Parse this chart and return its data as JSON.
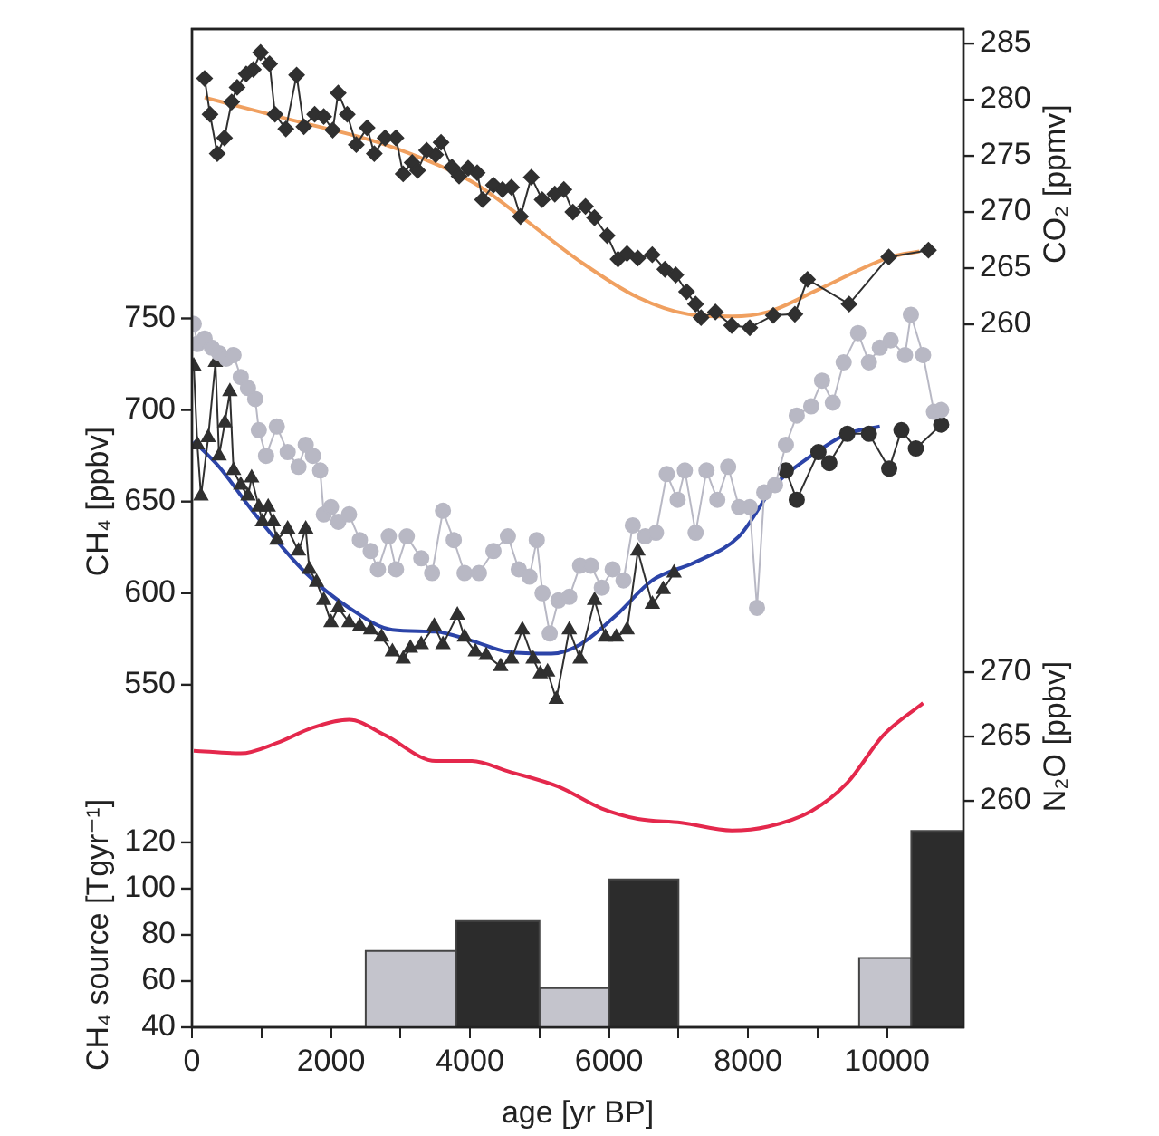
{
  "chart_data": [
    {
      "type": "line",
      "tick_labels": "y",
      "xlim": [
        0,
        11100
      ],
      "ylabel": "CH₄ [ppbv]",
      "ylim": [
        363,
        908
      ],
      "yticks": [
        550,
        600,
        650,
        700,
        750
      ],
      "y2label": "CO₂ [ppmv]",
      "y2lim": [
        197.4,
        286.3
      ],
      "y2ticks": [
        260,
        265,
        270,
        275,
        280,
        285
      ],
      "y3label": "N₂O [ppbv]",
      "y3lim": [
        242.4,
        320
      ],
      "y3ticks": [
        260,
        265,
        270
      ],
      "series": [
        {
          "axis": "y2",
          "color": "#303030",
          "marker": "diamond",
          "x": [
            182,
            260,
            364,
            468,
            571,
            650,
            780,
            883,
            987,
            1117,
            1195,
            1351,
            1506,
            1610,
            1766,
            1896,
            2026,
            2104,
            2234,
            2364,
            2520,
            2623,
            2779,
            2935,
            3039,
            3169,
            3247,
            3377,
            3506,
            3584,
            3740,
            3844,
            3974,
            4104,
            4182,
            4338,
            4468,
            4597,
            4727,
            4883,
            5039,
            5221,
            5351,
            5481,
            5662,
            5792,
            5974,
            6130,
            6260,
            6416,
            6623,
            6805,
            6961,
            7117,
            7247,
            7325,
            7532,
            7766,
            8026,
            8364,
            8675,
            8857,
            9455,
            10026,
            10597
          ],
          "values": [
            281.9,
            278.7,
            275.2,
            276.6,
            279.8,
            281.1,
            282.3,
            282.7,
            284.2,
            283.2,
            278.7,
            277.4,
            282.2,
            277.6,
            278.7,
            278.5,
            277.3,
            280.6,
            278.7,
            276,
            277.5,
            275.2,
            276.6,
            276.6,
            273.4,
            274.4,
            273.7,
            275.5,
            275.1,
            276.2,
            274,
            273.2,
            273.9,
            273.5,
            271.1,
            272.4,
            272,
            272.2,
            269.6,
            273.1,
            271.1,
            271.6,
            272,
            270,
            270.5,
            269.5,
            267.9,
            265.8,
            266.3,
            265.9,
            266.2,
            264.9,
            264.4,
            262.9,
            261.8,
            260.6,
            261.1,
            259.9,
            259.7,
            260.8,
            260.9,
            264,
            261.8,
            266,
            266.6
          ]
        },
        {
          "axis": "y2",
          "color": "#f0a060",
          "x": [
            182,
            1429,
            2779,
            4026,
            4753,
            5584,
            6416,
            7143,
            7766,
            8286,
            9013,
            10052,
            10468
          ],
          "values": [
            280.2,
            278.2,
            276,
            272.7,
            269.5,
            265.6,
            262.4,
            260.9,
            260.7,
            261.1,
            263.1,
            266,
            266.5
          ]
        },
        {
          "color": "#b8b8c4",
          "marker": "circle",
          "x": [
            26,
            78,
            182,
            286,
            390,
            494,
            598,
            702,
            806,
            910,
            962,
            1066,
            1221,
            1377,
            1533,
            1637,
            1741,
            1845,
            1897,
            2001,
            2105,
            2260,
            2416,
            2572,
            2676,
            2832,
            2936,
            3091,
            3299,
            3455,
            3611,
            3767,
            3922,
            4130,
            4338,
            4546,
            4702,
            4857,
            4961,
            5044,
            5148,
            5273,
            5429,
            5585,
            5741,
            5897,
            6053,
            6209,
            6343,
            6520,
            6676,
            6832,
            6988,
            7092,
            7247,
            7403,
            7559,
            7715,
            7871,
            8026,
            8130,
            8234,
            8390,
            8546,
            8702,
            8910,
            9066,
            9221,
            9377,
            9585,
            9741,
            9897,
            10053,
            10260,
            10344,
            10520,
            10676,
            10780
          ],
          "values": [
            747,
            736,
            739,
            734,
            731,
            728,
            730,
            718,
            712,
            706,
            689,
            675,
            691,
            677,
            669,
            681,
            675,
            667,
            643,
            647,
            639,
            643,
            629,
            623,
            613,
            631,
            613,
            631,
            619,
            611,
            645,
            629,
            611,
            611,
            623,
            631,
            613,
            609,
            629,
            600,
            578,
            596,
            598,
            615,
            615,
            603,
            613,
            607,
            637,
            631,
            633,
            665,
            651,
            667,
            633,
            667,
            651,
            669,
            647,
            647,
            592,
            655,
            659,
            681,
            697,
            702,
            716,
            704,
            726,
            742,
            726,
            734,
            738,
            730,
            752,
            730,
            699,
            700
          ]
        },
        {
          "color": "#303030",
          "marker": "triangle",
          "x": [
            26,
            78,
            130,
            234,
            338,
            390,
            473,
            546,
            598,
            702,
            806,
            858,
            962,
            1014,
            1097,
            1169,
            1221,
            1377,
            1533,
            1637,
            1689,
            1793,
            1897,
            2001,
            2105,
            2260,
            2416,
            2572,
            2728,
            2884,
            3039,
            3143,
            3299,
            3486,
            3611,
            3819,
            3922,
            4078,
            4234,
            4442,
            4598,
            4754,
            4909,
            5013,
            5117,
            5242,
            5429,
            5585,
            5793,
            5949,
            6105,
            6260,
            6416,
            6624,
            6780,
            6936
          ],
          "values": [
            724,
            681,
            653,
            685,
            726,
            675,
            693,
            710,
            667,
            659,
            653,
            663,
            647,
            639,
            647,
            639,
            629,
            635,
            623,
            635,
            613,
            606,
            596,
            584,
            592,
            584,
            582,
            580,
            576,
            568,
            564,
            570,
            572,
            582,
            572,
            588,
            576,
            568,
            566,
            560,
            564,
            580,
            564,
            556,
            557,
            542,
            580,
            564,
            596,
            576,
            576,
            580,
            623,
            594,
            602,
            611
          ]
        },
        {
          "color": "#303030",
          "marker": "circle",
          "x": [
            8546,
            8702,
            9014,
            9170,
            9429,
            9741,
            10032,
            10208,
            10416,
            10780
          ],
          "values": [
            667,
            651,
            677,
            671,
            687,
            687,
            668,
            689,
            679,
            692
          ]
        },
        {
          "color": "#2c44a8",
          "x": [
            26,
            390,
            910,
            1637,
            2260,
            2884,
            3507,
            4027,
            4546,
            5170,
            5585,
            6105,
            6624,
            7247,
            7871,
            8390,
            8910,
            9429,
            9897
          ],
          "values": [
            683,
            669,
            643,
            611,
            592,
            580,
            579,
            574,
            568,
            567,
            572,
            588,
            607,
            617,
            631,
            659,
            675,
            687,
            691
          ]
        },
        {
          "axis": "y3",
          "color": "#e4284c",
          "x": [
            26,
            702,
            1221,
            1741,
            2260,
            2780,
            3507,
            4027,
            4546,
            5273,
            5897,
            6416,
            7040,
            7767,
            8286,
            8910,
            9429,
            9948,
            10520
          ],
          "values": [
            263.9,
            263.7,
            264.5,
            265.7,
            266.3,
            265.1,
            263.1,
            263.1,
            262.3,
            261.1,
            259.4,
            258.6,
            258.3,
            257.7,
            258,
            259.2,
            261.4,
            265.1,
            267.6
          ]
        }
      ]
    },
    {
      "type": "histogram",
      "xlabel": "age [yr BP]",
      "xlim": [
        0,
        11100
      ],
      "xticks": [
        0,
        {
          "value": 1000,
          "label": null
        },
        2000,
        {
          "value": 3000,
          "label": null
        },
        4000,
        {
          "value": 5000,
          "label": null
        },
        6000,
        {
          "value": 7000,
          "label": null
        },
        8000,
        {
          "value": 9000,
          "label": null
        },
        10000
      ],
      "ylabel": "CH₄ source [Tgyr⁻¹]",
      "ylim": [
        40,
        472
      ],
      "yticks": [
        40,
        60,
        80,
        100,
        120
      ],
      "bins": [
        2500,
        3800,
        5000,
        6000,
        7000,
        9600,
        10350,
        11100
      ],
      "series": [
        {
          "color": "#c4c4cc",
          "values": [
            73,
            null,
            57,
            null,
            null,
            70,
            null
          ]
        },
        {
          "color": "#2c2c2c",
          "values": [
            null,
            86,
            null,
            104,
            null,
            null,
            125
          ]
        }
      ]
    }
  ]
}
